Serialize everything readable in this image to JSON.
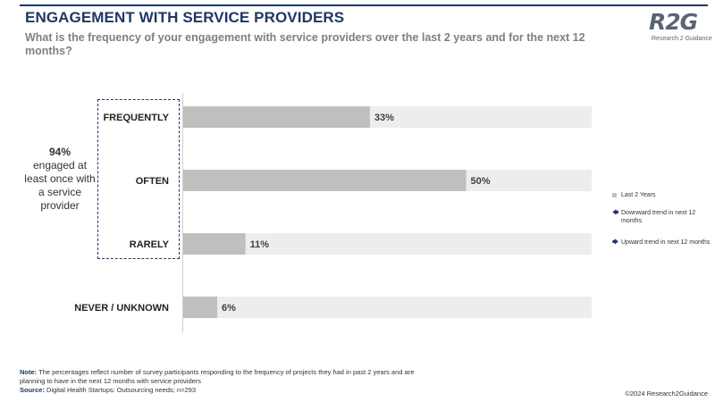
{
  "header": {
    "title": "ENGAGEMENT WITH SERVICE PROVIDERS",
    "subtitle": "What is the frequency of your engagement with service providers over the last 2 years and for the next 12 months?"
  },
  "logo": {
    "mark": "R2G",
    "name": "Research 2 Guidance"
  },
  "callout": {
    "percent": "94%",
    "text": "engaged at least once with a service provider"
  },
  "legend": {
    "items": [
      {
        "label": "Last 2 Years",
        "symbol": "square",
        "color": "#bfbfbf"
      },
      {
        "label": "Downward trend in next 12 months",
        "symbol": "arrow-left-icon",
        "glyph": "🡄",
        "color": "#1f3864"
      },
      {
        "label": "Upward trend in next 12 months",
        "symbol": "arrow-right-icon",
        "glyph": "🡆",
        "color": "#1f3864"
      }
    ]
  },
  "chart_data": {
    "type": "bar",
    "orientation": "horizontal",
    "categories": [
      "FREQUENTLY",
      "OFTEN",
      "RARELY",
      "NEVER / UNKNOWN"
    ],
    "series": [
      {
        "name": "Last 2 Years",
        "values": [
          33,
          50,
          11,
          6
        ],
        "color": "#bfbfbf"
      }
    ],
    "value_labels": [
      "33%",
      "50%",
      "11%",
      "6%"
    ],
    "xlim": [
      0,
      100
    ],
    "background_track_color": "#ededed",
    "grid": false
  },
  "footer": {
    "note_label": "Note:",
    "note_text": " The percentages reflect number of survey participants responding to the frequency of projects they had in past 2 years and are planning to have in the next 12 months with service providers",
    "source_label": "Source:",
    "source_text": " Digital Health Startups: Outsourcing needs; n=293",
    "copyright": "©2024 Research2Guidance"
  }
}
